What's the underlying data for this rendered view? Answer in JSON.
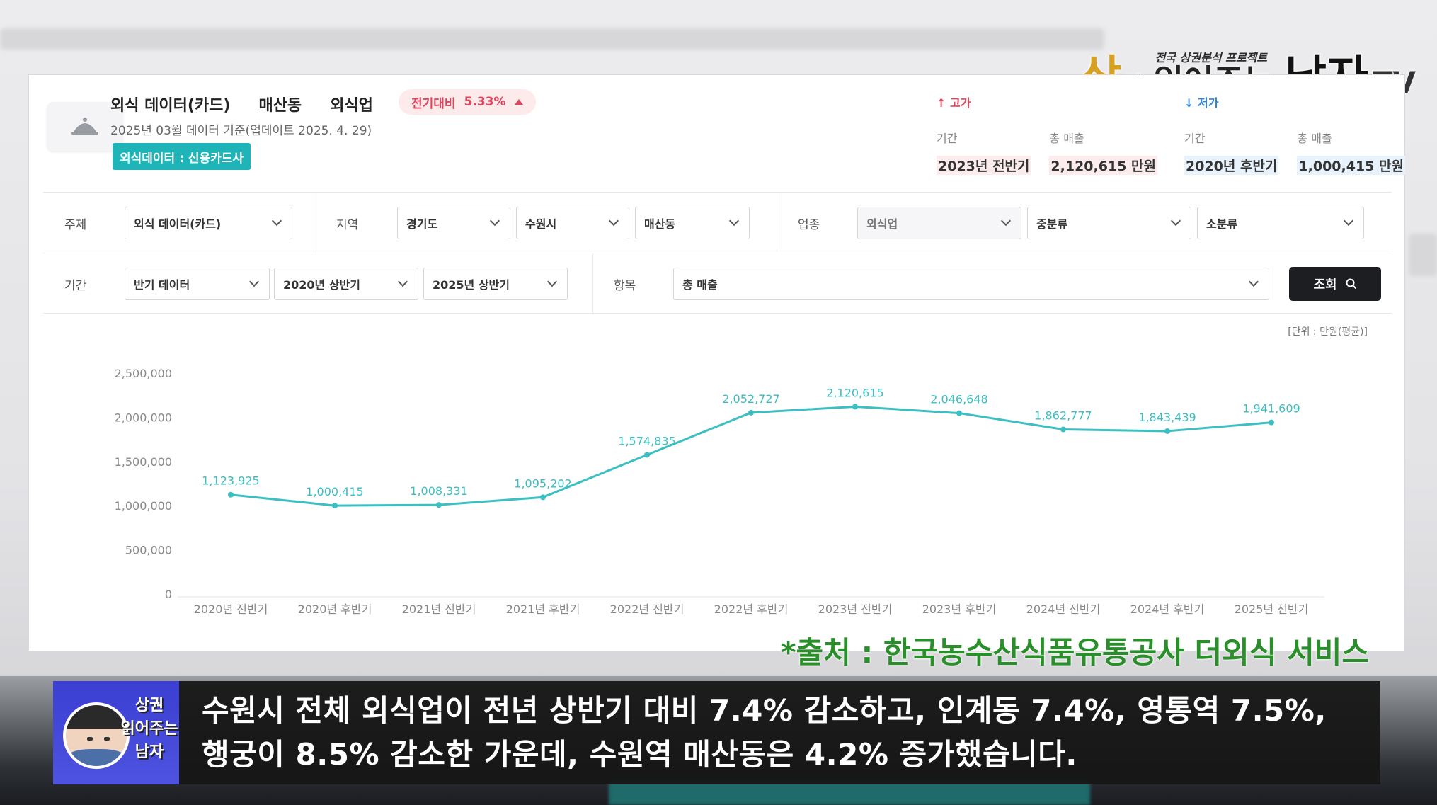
{
  "channel": {
    "small_text": "전국 상권분석 프로젝트",
    "sang": "상",
    "gwon": "권",
    "mid": " 읽어주는 ",
    "namja": "남자",
    "tv": "TV"
  },
  "header": {
    "title_1": "외식 데이터(카드)",
    "title_2": "매산동",
    "title_3": "외식업",
    "change_label": "전기대비",
    "change_value": "5.33%",
    "subtitle": "2025년 03월 데이터 기준(업데이트 2025. 4. 29)",
    "source_badge": "외식데이터 : 신용카드사"
  },
  "highlights": {
    "high": {
      "title": "↑ 고가",
      "period_label": "기간",
      "period": "2023년 전반기",
      "sales_label": "총 매출",
      "sales": "2,120,615 만원"
    },
    "low": {
      "title": "↓ 저가",
      "period_label": "기간",
      "period": "2020년 후반기",
      "sales_label": "총 매출",
      "sales": "1,000,415 만원"
    }
  },
  "filters": {
    "row1": {
      "topic_label": "주제",
      "topic": "외식 데이터(카드)",
      "region_label": "지역",
      "province": "경기도",
      "city": "수원시",
      "dong": "매산동",
      "industry_label": "업종",
      "industry": "외식업",
      "mid_category": "중분류",
      "sub_category": "소분류"
    },
    "row2": {
      "period_label": "기간",
      "period_type": "반기 데이터",
      "start": "2020년 상반기",
      "end": "2025년 상반기",
      "item_label": "항목",
      "item": "총 매출",
      "search_label": "조회"
    }
  },
  "unit_label": "[단위 : 만원(평균)]",
  "chart_data": {
    "type": "line",
    "categories": [
      "2020년 전반기",
      "2020년 후반기",
      "2021년 전반기",
      "2021년 후반기",
      "2022년 전반기",
      "2022년 후반기",
      "2023년 전반기",
      "2023년 후반기",
      "2024년 전반기",
      "2024년 후반기",
      "2025년 전반기"
    ],
    "values": [
      1123925,
      1000415,
      1008331,
      1095202,
      1574835,
      2052727,
      2120615,
      2046648,
      1862777,
      1843439,
      1941609
    ],
    "value_labels": [
      "1,123,925",
      "1,000,415",
      "1,008,331",
      "1,095,202",
      "1,574,835",
      "2,052,727",
      "2,120,615",
      "2,046,648",
      "1,862,777",
      "1,843,439",
      "1,941,609"
    ],
    "yticks": [
      "2,500,000",
      "2,000,000",
      "1,500,000",
      "1,000,000",
      "500,000",
      "0"
    ],
    "ylim": [
      0,
      2500000
    ],
    "line_color": "#3bbfc2",
    "grid": false
  },
  "source_note": "*출처 : 한국농수산식품유통공사 더외식 서비스",
  "caption": {
    "avatar_text_1": "상권",
    "avatar_text_2": "읽어주는",
    "avatar_text_3": "남자",
    "line1": "수원시 전체 외식업이 전년 상반기 대비 7.4% 감소하고, 인계동 7.4%, 영통역 7.5%,",
    "line2": "행궁이 8.5% 감소한 가운데, 수원역 매산동은 4.2% 증가했습니다."
  },
  "icons": {
    "header": "cloche-icon",
    "search": "magnifier-icon",
    "dropdown": "chevron-down-icon"
  }
}
